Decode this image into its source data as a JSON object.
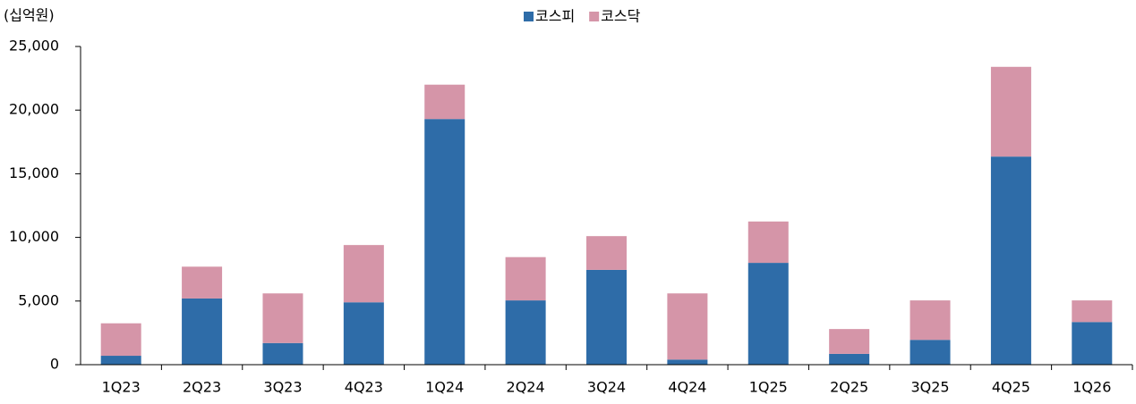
{
  "chart_data": {
    "type": "bar",
    "stacked": true,
    "y_label": "(십억원)",
    "categories": [
      "1Q23",
      "2Q23",
      "3Q23",
      "4Q23",
      "1Q24",
      "2Q24",
      "3Q24",
      "4Q24",
      "1Q25",
      "2Q25",
      "3Q25",
      "4Q25",
      "1Q26"
    ],
    "series": [
      {
        "name": "코스피",
        "color": "#2e6ca8",
        "values": [
          700,
          5200,
          1700,
          4900,
          19300,
          5050,
          7450,
          400,
          8000,
          850,
          1950,
          16350,
          3350
        ]
      },
      {
        "name": "코스닥",
        "color": "#d595a8",
        "values": [
          2550,
          2500,
          3900,
          4500,
          2700,
          3400,
          2650,
          5200,
          3250,
          1950,
          3100,
          7050,
          1700
        ]
      }
    ],
    "ylim": [
      0,
      25000
    ],
    "yticks": [
      0,
      {
        "value": 5000,
        "label": "5,000"
      },
      {
        "value": 10000,
        "label": "10,000"
      },
      {
        "value": 15000,
        "label": "15,000"
      },
      {
        "value": 20000,
        "label": "20,000"
      },
      {
        "value": 25000,
        "label": "25,000"
      }
    ],
    "legend": "top"
  }
}
